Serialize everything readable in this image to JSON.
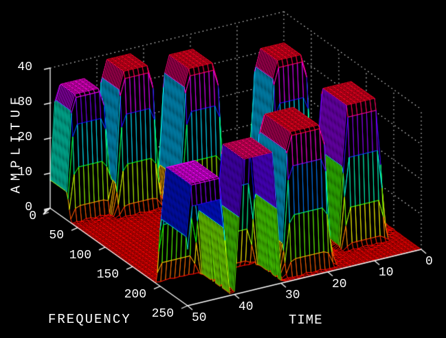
{
  "chart_data": {
    "type": "surface-mesh-3d",
    "title": "",
    "background": "#000000",
    "axis_color": "#ffffff",
    "grid_style": "dotted",
    "colormap": "hsv",
    "colormap_note": "hue 0deg (red) at amplitude 0 through green/cyan/blue/magenta back to red at amplitude 40; mesh lines colored by height over black fill",
    "axes": {
      "amplitude": {
        "label": "AMPLITUE",
        "range": [
          0,
          40
        ],
        "ticks": [
          0,
          10,
          20,
          30,
          40
        ]
      },
      "frequency": {
        "label": "FREQUENCY",
        "range": [
          0,
          250
        ],
        "ticks": [
          0,
          50,
          100,
          150,
          200,
          250
        ]
      },
      "time": {
        "label": "TIME",
        "range": [
          0,
          50
        ],
        "ticks": [
          0,
          10,
          20,
          30,
          40,
          50
        ]
      }
    },
    "peaks": [
      {
        "time": 45.5,
        "freq": 15,
        "amplitude": 35,
        "time_halfwidth": 3,
        "freq_halfwidth": 14
      },
      {
        "time": 46,
        "freq": 225,
        "amplitude": 34,
        "time_halfwidth": 3,
        "freq_halfwidth": 22
      },
      {
        "time": 36.5,
        "freq": 25,
        "amplitude": 40,
        "time_halfwidth": 3,
        "freq_halfwidth": 16
      },
      {
        "time": 35,
        "freq": 232,
        "amplitude": 38,
        "time_halfwidth": 3,
        "freq_halfwidth": 20
      },
      {
        "time": 25.5,
        "freq": 48,
        "amplitude": 40,
        "time_halfwidth": 3,
        "freq_halfwidth": 18
      },
      {
        "time": 23,
        "freq": 210,
        "amplitude": 40,
        "time_halfwidth": 3.5,
        "freq_halfwidth": 24
      },
      {
        "time": 9.5,
        "freq": 75,
        "amplitude": 40,
        "time_halfwidth": 3,
        "freq_halfwidth": 16
      },
      {
        "time": 8,
        "freq": 186,
        "amplitude": 40,
        "time_halfwidth": 3,
        "freq_halfwidth": 22
      }
    ]
  }
}
